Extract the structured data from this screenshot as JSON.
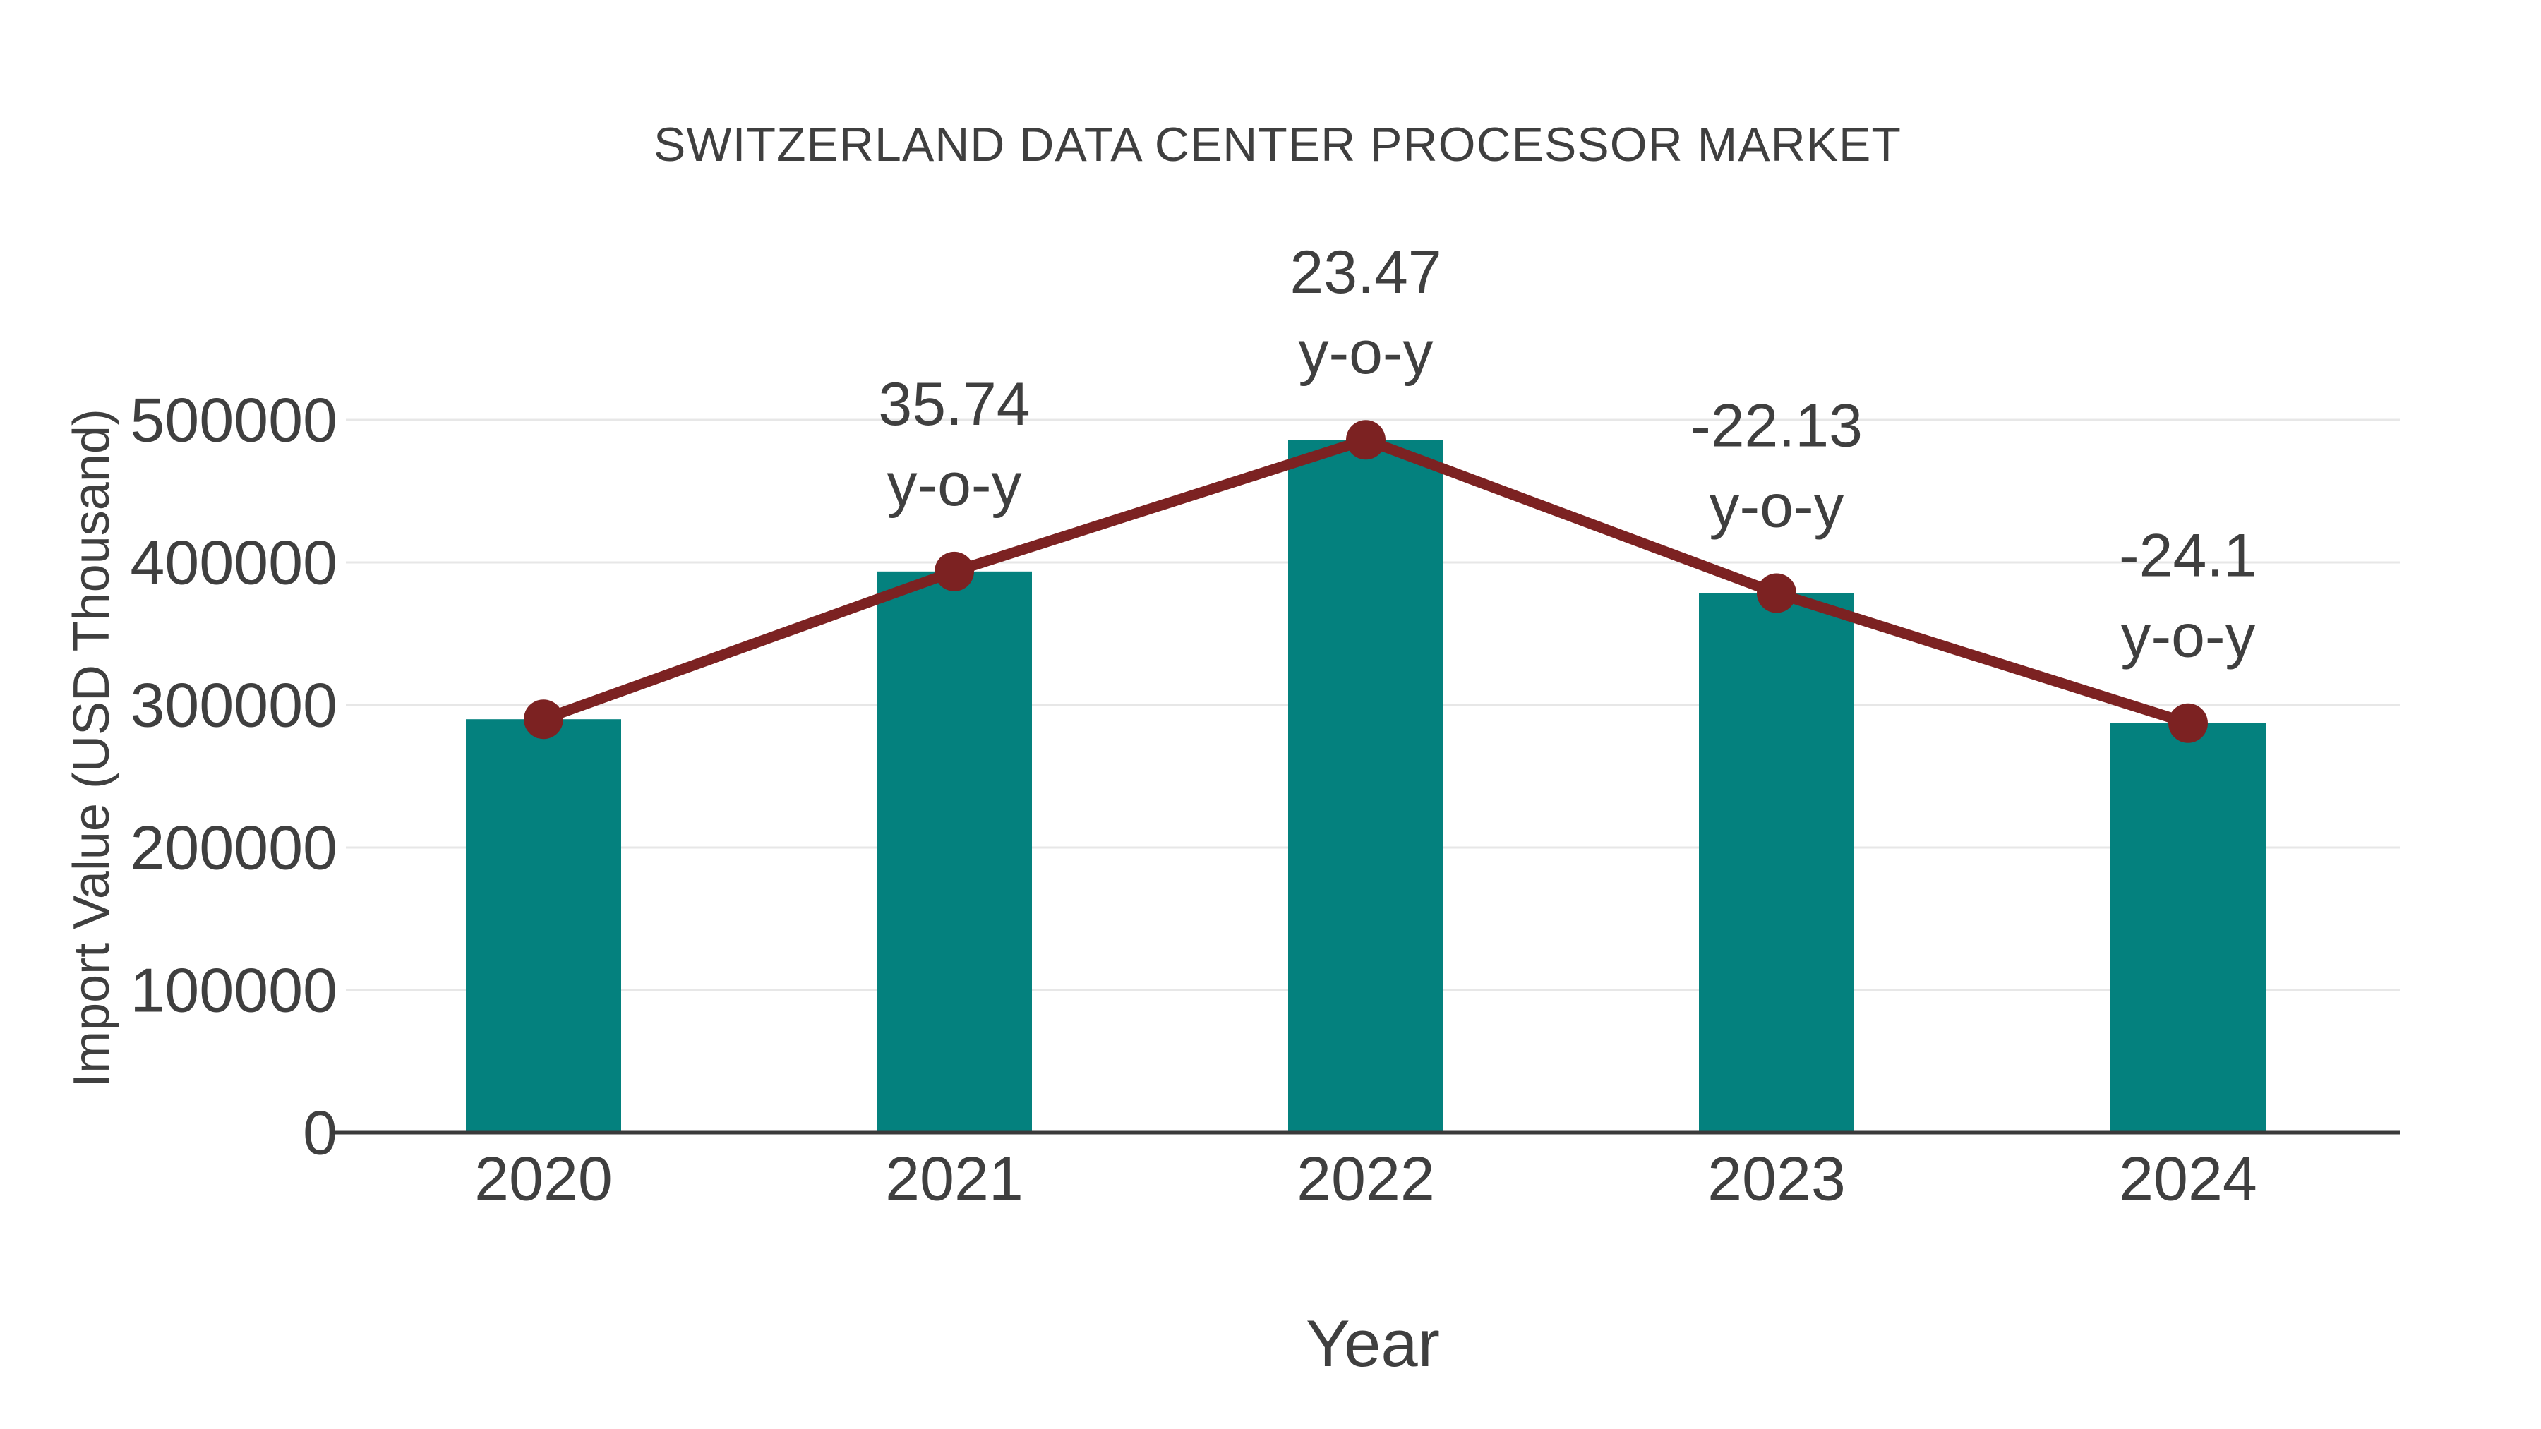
{
  "chart_data": {
    "type": "bar",
    "title": "SWITZERLAND DATA CENTER PROCESSOR MARKET",
    "xlabel": "Year",
    "ylabel": "Import Value (USD Thousand)",
    "categories": [
      "2020",
      "2021",
      "2022",
      "2023",
      "2024"
    ],
    "series": [
      {
        "name": "Import Value bars",
        "type": "bar",
        "color": "#04817e",
        "values": [
          290000,
          393650,
          486030,
          378470,
          287260
        ]
      },
      {
        "name": "y-o-y trend line",
        "type": "line",
        "color": "#7c2222",
        "values": [
          290000,
          393650,
          486030,
          378470,
          287260
        ]
      }
    ],
    "annotations": [
      {
        "category_index": 1,
        "value": "35.74",
        "suffix": "y-o-y"
      },
      {
        "category_index": 2,
        "value": "23.47",
        "suffix": "y-o-y"
      },
      {
        "category_index": 3,
        "value": "-22.13",
        "suffix": "y-o-y"
      },
      {
        "category_index": 4,
        "value": "-24.1",
        "suffix": "y-o-y"
      }
    ],
    "yticks": [
      "0",
      "100000",
      "200000",
      "300000",
      "400000",
      "500000"
    ],
    "ytick_values": [
      0,
      100000,
      200000,
      300000,
      400000,
      500000
    ],
    "ylim": [
      0,
      500000
    ],
    "grid": "horizontal",
    "legend": "none",
    "colors": {
      "bar": "#04817e",
      "line": "#7c2222",
      "marker": "#7c2222",
      "gridline": "#e7e7e7",
      "axis_line": "#3a3a3a",
      "text": "#3f3f3f"
    }
  }
}
